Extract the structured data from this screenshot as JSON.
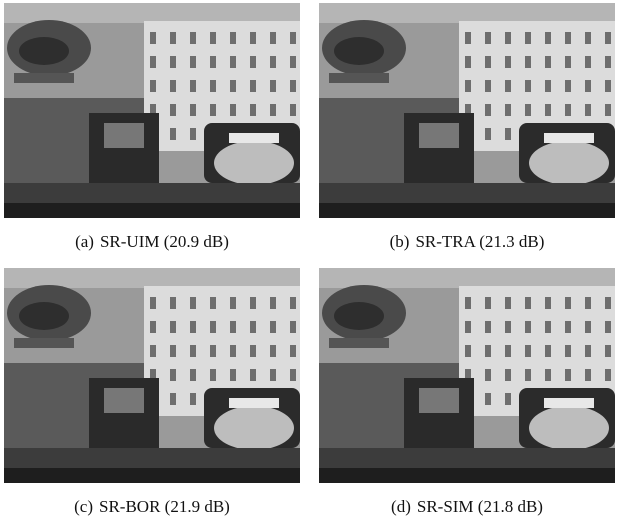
{
  "figure": {
    "panels": [
      {
        "label": "(a)",
        "caption": "SR-UIM (20.9 dB)"
      },
      {
        "label": "(b)",
        "caption": "SR-TRA (21.3 dB)"
      },
      {
        "label": "(c)",
        "caption": "SR-BOR (21.9 dB)"
      },
      {
        "label": "(d)",
        "caption": "SR-SIM (21.8 dB)"
      }
    ]
  }
}
